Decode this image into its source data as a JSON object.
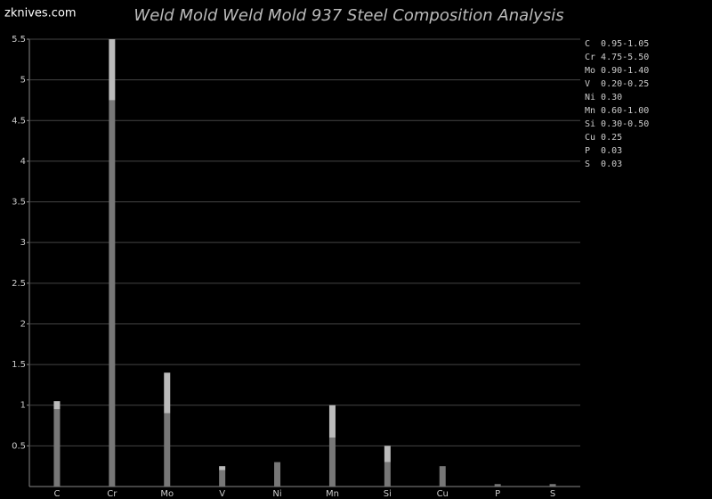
{
  "chart_data": {
    "type": "range_bar",
    "title": "Weld Mold Weld Mold 937 Steel Composition Analysis",
    "watermark": "zknives.com",
    "categories": [
      "C",
      "Cr",
      "Mo",
      "V",
      "Ni",
      "Mn",
      "Si",
      "Cu",
      "P",
      "S"
    ],
    "low": [
      0.95,
      4.75,
      0.9,
      0.2,
      null,
      0.6,
      0.3,
      null,
      null,
      null
    ],
    "high": [
      1.05,
      5.5,
      1.4,
      0.25,
      0.3,
      1.0,
      0.5,
      0.25,
      0.03,
      0.03
    ],
    "low_color": "#777777",
    "high_color": "#bbbbbb",
    "composition_labels": [
      "C  0.95-1.05",
      "Cr 4.75-5.50",
      "Mo 0.90-1.40",
      "V  0.20-0.25",
      "Ni 0.30",
      "Mn 0.60-1.00",
      "Si 0.30-0.50",
      "Cu 0.25",
      "P  0.03",
      "S  0.03"
    ],
    "ylim": [
      0,
      5.5
    ],
    "yticks": [
      0.5,
      1,
      1.5,
      2,
      2.5,
      3,
      3.5,
      4,
      4.5,
      5,
      5.5
    ],
    "grid": true
  }
}
